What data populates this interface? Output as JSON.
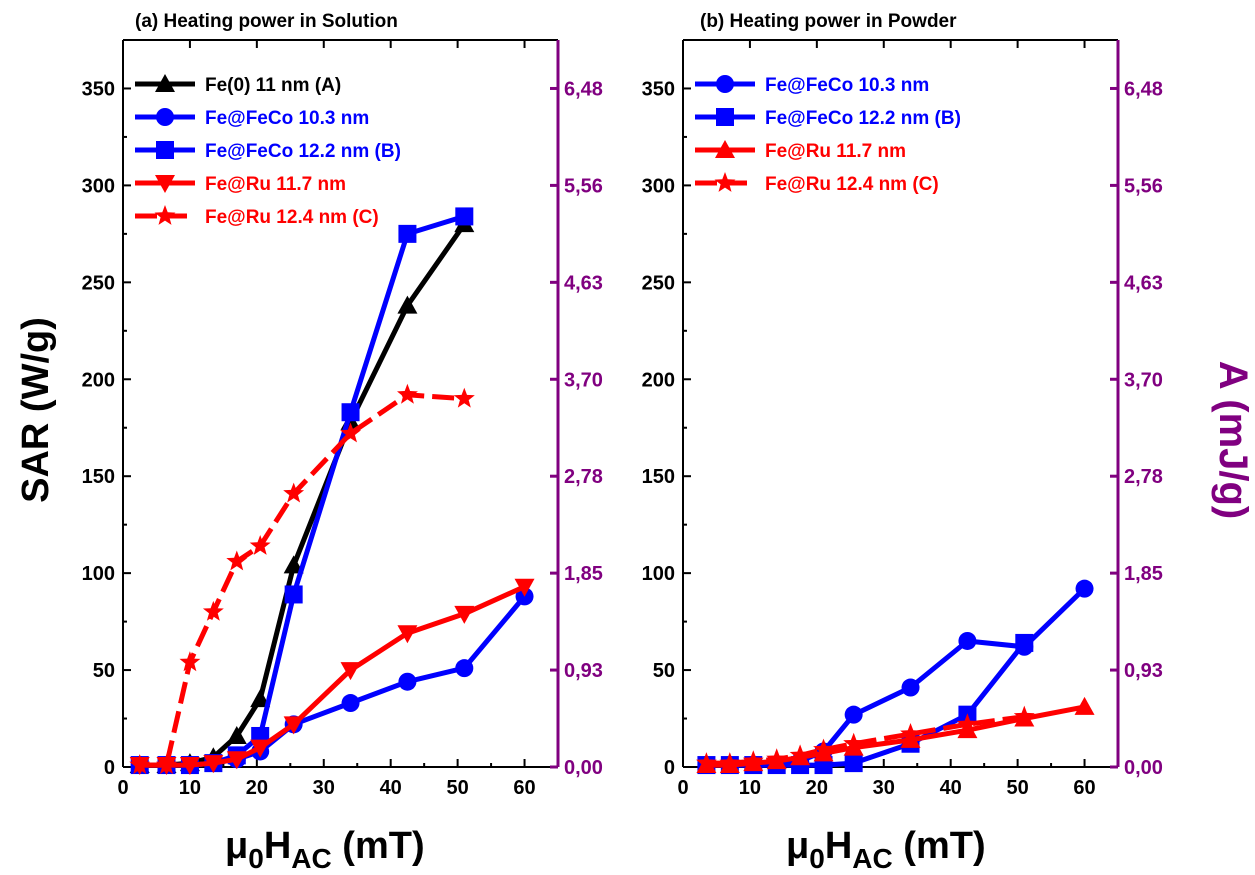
{
  "chart_data": [
    {
      "type": "line",
      "title": "(a) Heating power in Solution",
      "xlabel_main": "μ",
      "xlabel_sub1": "0",
      "xlabel_mid": "H",
      "xlabel_sub2": "AC",
      "xlabel_tail": " (mT)",
      "ylabel": "SAR (W/g)",
      "ylabel_right": "",
      "xlim": [
        0,
        65
      ],
      "ylim": [
        0,
        375
      ],
      "xticks": [
        "0",
        "10",
        "20",
        "30",
        "40",
        "50",
        "60"
      ],
      "yticks": [
        "0",
        "50",
        "100",
        "150",
        "200",
        "250",
        "300",
        "350"
      ],
      "right_ticks": [
        "0,00",
        "0,93",
        "1,85",
        "2,78",
        "3,70",
        "4,63",
        "5,56",
        "6,48"
      ],
      "right_axis_color": "#800080",
      "legend_position": "top-left",
      "series": [
        {
          "name": "Fe(0) 11 nm (A)",
          "color": "#000000",
          "marker": "triangle-up",
          "dash": false,
          "x": [
            2.5,
            6.5,
            10,
            13.5,
            17,
            20.5,
            25.5,
            34,
            42.5,
            51
          ],
          "y": [
            1,
            1,
            2,
            5,
            16,
            35,
            104,
            178,
            238,
            280
          ]
        },
        {
          "name": "Fe@FeCo 10.3 nm",
          "color": "#0000ff",
          "marker": "circle",
          "dash": false,
          "x": [
            2.5,
            6.5,
            10,
            13.5,
            17,
            20.5,
            25.5,
            34,
            42.5,
            51,
            60
          ],
          "y": [
            1,
            1,
            1,
            2,
            4,
            8,
            22,
            33,
            44,
            51,
            88
          ]
        },
        {
          "name": "Fe@FeCo 12.2 nm  (B)",
          "color": "#0000ff",
          "marker": "square",
          "dash": false,
          "x": [
            2.5,
            6.5,
            10,
            13.5,
            17,
            20.5,
            25.5,
            34,
            42.5,
            51
          ],
          "y": [
            1,
            1,
            1,
            2,
            6,
            16,
            89,
            183,
            275,
            284
          ]
        },
        {
          "name": "Fe@Ru 11.7 nm",
          "color": "#ff0000",
          "marker": "triangle-down",
          "dash": false,
          "x": [
            2.5,
            6.5,
            10,
            13.5,
            17,
            20.5,
            25.5,
            34,
            42.5,
            51,
            60
          ],
          "y": [
            1,
            1,
            1,
            2,
            4,
            10,
            22,
            50,
            69,
            79,
            93
          ]
        },
        {
          "name": "Fe@Ru 12.4 nm (C)",
          "color": "#ff0000",
          "marker": "star",
          "dash": true,
          "x": [
            2.5,
            6.5,
            10,
            13.5,
            17,
            20.5,
            25.5,
            34,
            42.5,
            51
          ],
          "y": [
            1,
            1,
            54,
            80,
            106,
            114,
            141,
            172,
            192,
            190
          ]
        }
      ]
    },
    {
      "type": "line",
      "title": "(b) Heating power in Powder",
      "xlabel_main": "μ",
      "xlabel_sub1": "0",
      "xlabel_mid": "H",
      "xlabel_sub2": "AC",
      "xlabel_tail": " (mT)",
      "ylabel": "",
      "ylabel_right": "A (mJ/g)",
      "xlim": [
        0,
        65
      ],
      "ylim": [
        0,
        375
      ],
      "xticks": [
        "0",
        "10",
        "20",
        "30",
        "40",
        "50",
        "60"
      ],
      "yticks": [
        "0",
        "50",
        "100",
        "150",
        "200",
        "250",
        "300",
        "350"
      ],
      "right_ticks": [
        "0,00",
        "0,93",
        "1,85",
        "2,78",
        "3,70",
        "4,63",
        "5,56",
        "6,48"
      ],
      "right_axis_color": "#800080",
      "legend_position": "top-left",
      "series": [
        {
          "name": "Fe@FeCo 10.3 nm",
          "color": "#0000ff",
          "marker": "circle",
          "dash": false,
          "x": [
            3.5,
            7,
            10.5,
            14,
            17.5,
            21,
            25.5,
            34,
            42.5,
            51,
            60
          ],
          "y": [
            1,
            1,
            1,
            1,
            3,
            8,
            27,
            41,
            65,
            62,
            92
          ]
        },
        {
          "name": "Fe@FeCo 12.2 nm  (B)",
          "color": "#0000ff",
          "marker": "square",
          "dash": false,
          "x": [
            3.5,
            7,
            10.5,
            14,
            17.5,
            21,
            25.5,
            34,
            42.5,
            51
          ],
          "y": [
            1,
            1,
            1,
            1,
            1,
            1,
            2,
            12,
            27,
            64
          ]
        },
        {
          "name": "Fe@Ru 11.7 nm",
          "color": "#ff0000",
          "marker": "triangle-up",
          "dash": false,
          "x": [
            3.5,
            7,
            10.5,
            14,
            17.5,
            21,
            25.5,
            34,
            42.5,
            51,
            60
          ],
          "y": [
            1,
            1,
            2,
            3,
            5,
            7,
            10,
            14,
            19,
            25,
            31
          ]
        },
        {
          "name": "Fe@Ru 12.4 nm (C)",
          "color": "#ff0000",
          "marker": "star",
          "dash": true,
          "x": [
            3.5,
            7,
            10.5,
            14,
            17.5,
            21,
            25.5,
            34,
            42.5,
            51
          ],
          "y": [
            2,
            2,
            3,
            4,
            6,
            9,
            12,
            17,
            22,
            26
          ]
        }
      ]
    }
  ]
}
